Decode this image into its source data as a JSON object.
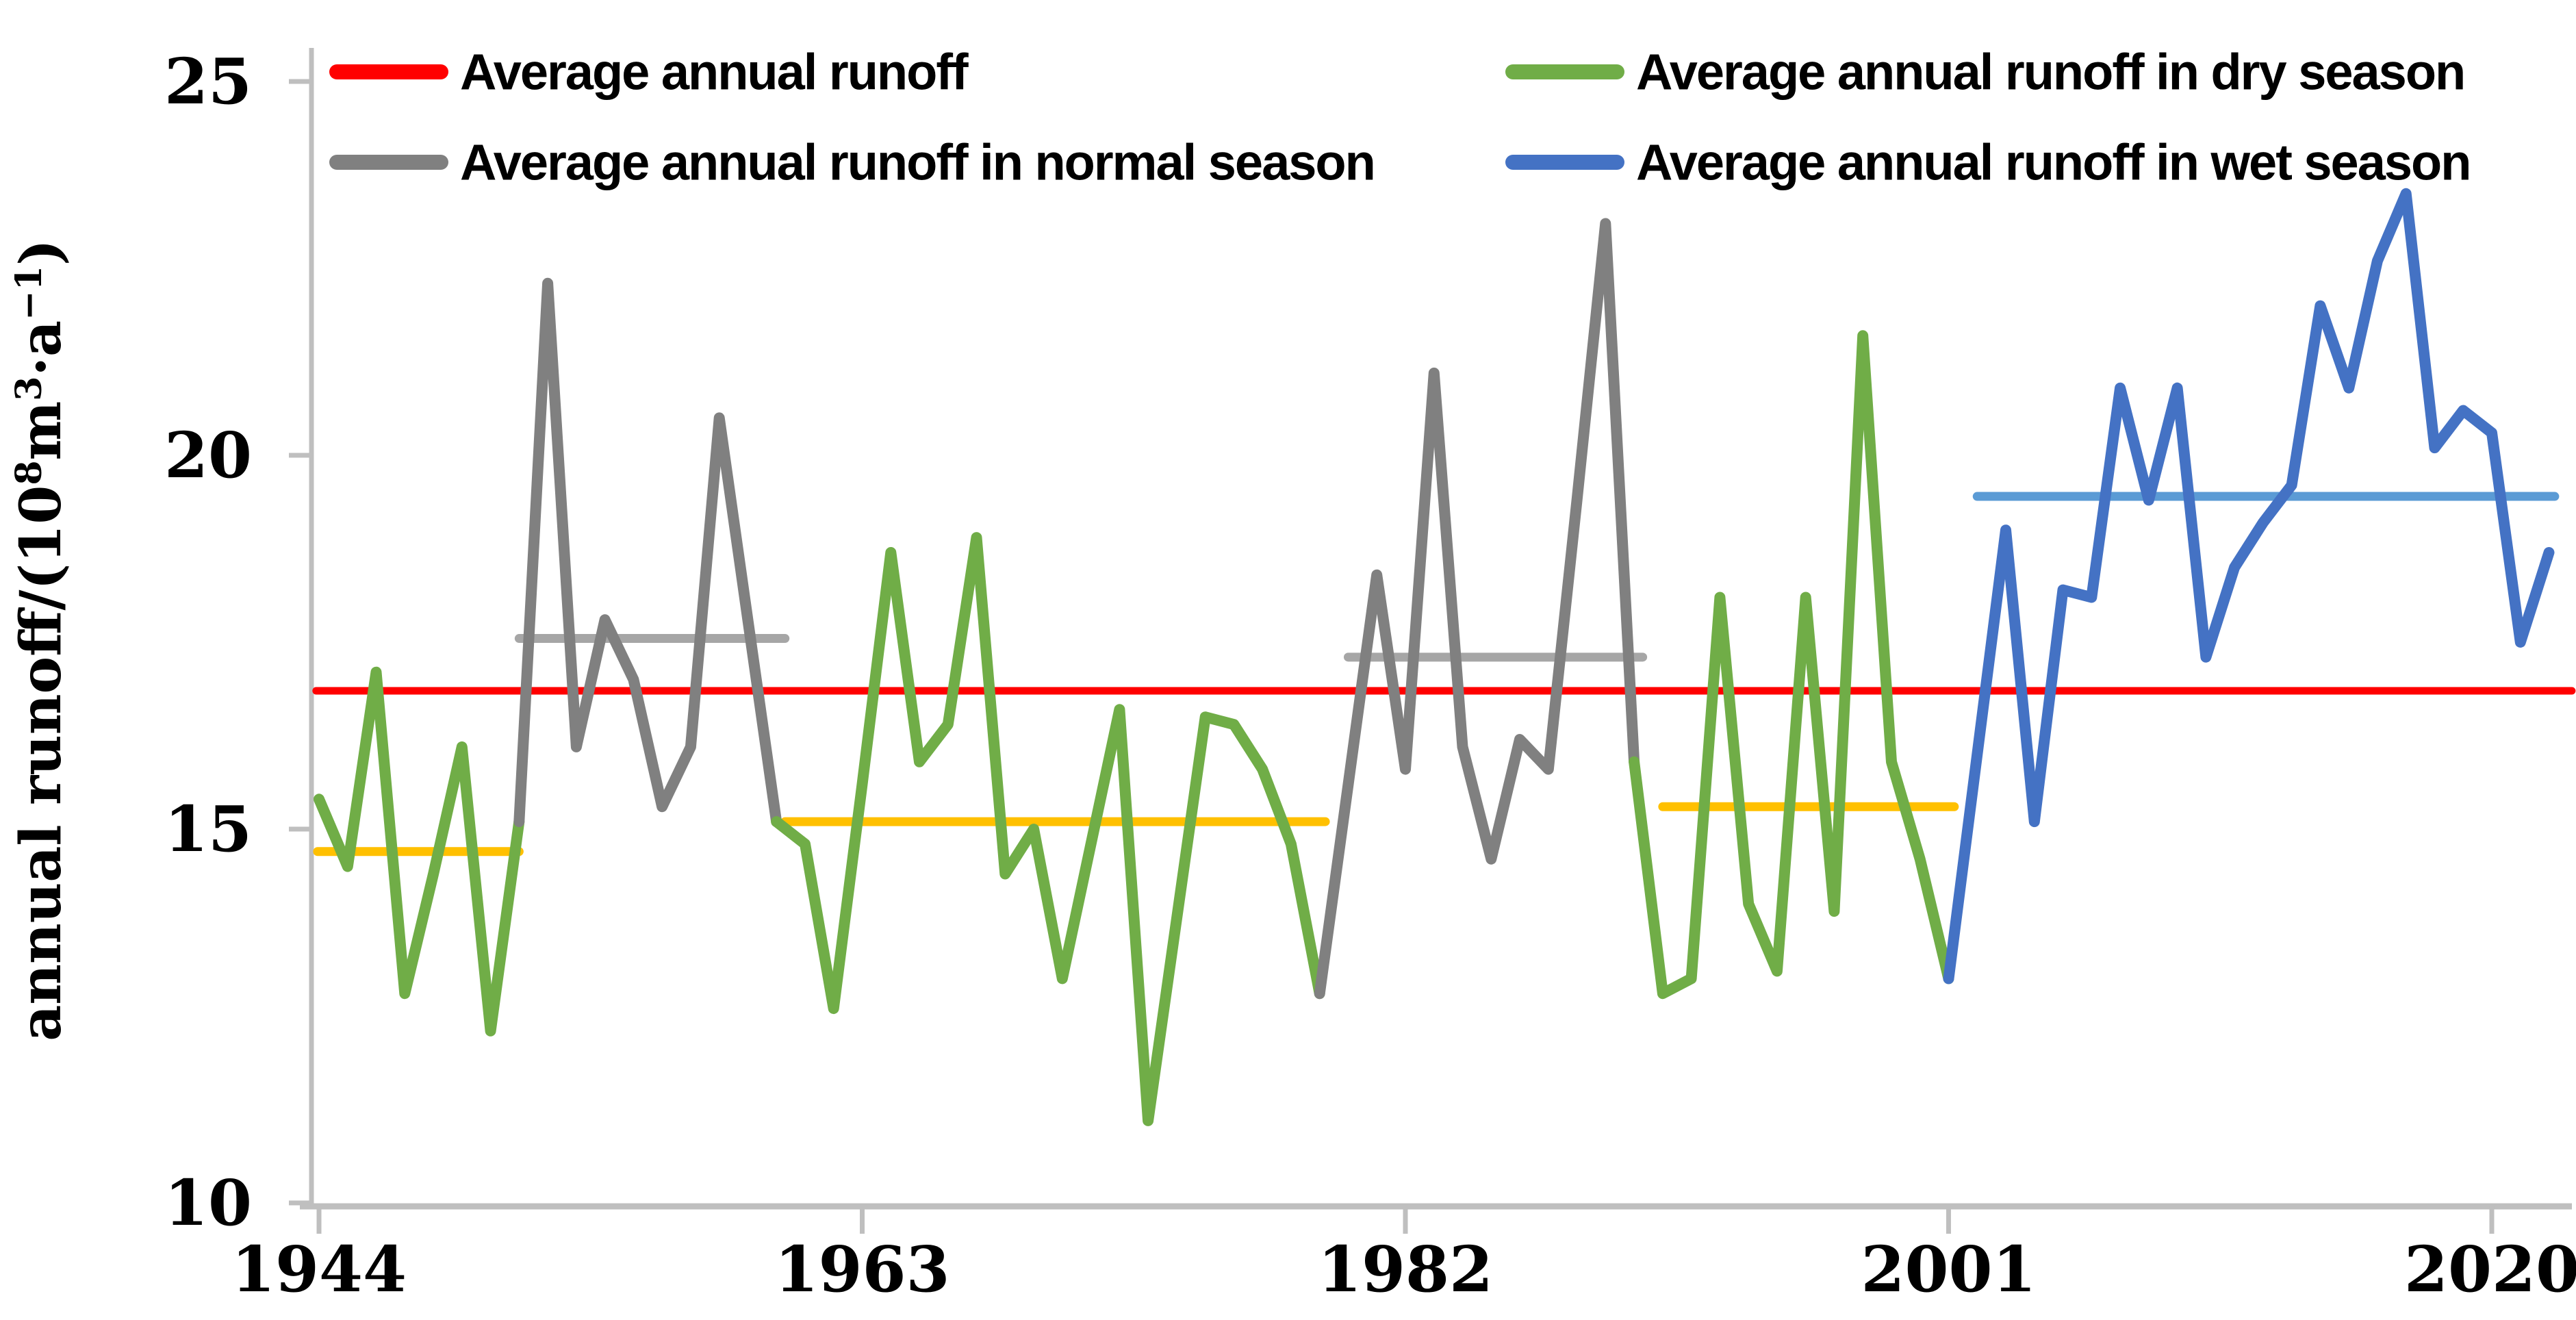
{
  "page": {
    "background": "#FFFFFF"
  },
  "chart_data": {
    "type": "line",
    "title": "",
    "xlabel": "",
    "ylabel": "annual runoff/(10^8 m^3 · a^-1)",
    "ylabel_parts": [
      {
        "t": "annual runoff/(10"
      },
      {
        "t": "8",
        "sup": true
      },
      {
        "t": "m"
      },
      {
        "t": "3",
        "sup": true
      },
      {
        "t": "·a"
      },
      {
        "t": "−1",
        "sup": true
      },
      {
        "t": ")"
      }
    ],
    "grid": "off",
    "legend_position": "top-two-columns",
    "legend": [
      {
        "label": "Average annual runoff",
        "color": "#FF0000",
        "series": "overall_average"
      },
      {
        "label": "Average annual runoff in normal season",
        "color": "#808080",
        "series": "normal"
      },
      {
        "label": "Average annual runoff in dry season",
        "color": "#70AD47",
        "series": "dry"
      },
      {
        "label": "Average annual runoff in wet season",
        "color": "#4472C4",
        "series": "wet"
      }
    ],
    "x_tick_labels": [
      "1944",
      "1963",
      "1982",
      "2001",
      "2020"
    ],
    "x_tick_years": [
      1944,
      1963,
      1982,
      2001,
      2020
    ],
    "y_tick_labels": [
      "10",
      "15",
      "20",
      "25"
    ],
    "y_ticks": [
      10,
      15,
      20,
      25
    ],
    "ylim": [
      10,
      25
    ],
    "xlim": [
      1944,
      2022
    ],
    "years": [
      1944,
      1945,
      1946,
      1947,
      1948,
      1949,
      1950,
      1951,
      1952,
      1953,
      1954,
      1955,
      1956,
      1957,
      1958,
      1959,
      1960,
      1961,
      1962,
      1963,
      1964,
      1965,
      1966,
      1967,
      1968,
      1969,
      1970,
      1971,
      1972,
      1973,
      1974,
      1975,
      1976,
      1977,
      1978,
      1979,
      1980,
      1981,
      1982,
      1983,
      1984,
      1985,
      1986,
      1987,
      1988,
      1989,
      1990,
      1991,
      1992,
      1993,
      1994,
      1995,
      1996,
      1997,
      1998,
      1999,
      2000,
      2001,
      2002,
      2003,
      2004,
      2005,
      2006,
      2007,
      2008,
      2009,
      2010,
      2011,
      2012,
      2013,
      2014,
      2015,
      2016,
      2017,
      2018,
      2019,
      2020,
      2021,
      2022
    ],
    "annual_runoff": [
      15.4,
      14.5,
      17.1,
      12.8,
      14.4,
      16.1,
      12.3,
      15.1,
      22.3,
      16.1,
      17.8,
      17.0,
      15.3,
      16.1,
      20.5,
      17.8,
      15.1,
      14.8,
      12.6,
      15.6,
      18.7,
      15.9,
      16.4,
      18.9,
      14.4,
      15.0,
      13.0,
      14.8,
      16.6,
      11.1,
      13.8,
      16.5,
      16.4,
      15.8,
      14.8,
      12.8,
      15.6,
      18.4,
      15.8,
      21.1,
      16.1,
      14.6,
      16.2,
      15.8,
      19.4,
      23.1,
      15.9,
      12.8,
      13.0,
      18.1,
      14.0,
      13.1,
      18.1,
      13.9,
      21.6,
      15.9,
      14.6,
      13.0,
      16.0,
      19.0,
      15.1,
      18.2,
      18.1,
      20.9,
      19.4,
      20.9,
      17.3,
      18.5,
      19.1,
      19.6,
      22.0,
      20.9,
      22.6,
      23.5,
      20.1,
      20.6,
      20.3,
      17.5,
      18.7
    ],
    "season_segments": [
      {
        "season": "dry",
        "start_year": 1944,
        "end_year": 1951,
        "color": "#70AD47"
      },
      {
        "season": "normal",
        "start_year": 1951,
        "end_year": 1960,
        "color": "#808080"
      },
      {
        "season": "dry",
        "start_year": 1960,
        "end_year": 1979,
        "color": "#70AD47"
      },
      {
        "season": "normal",
        "start_year": 1979,
        "end_year": 1990,
        "color": "#808080"
      },
      {
        "season": "dry",
        "start_year": 1990,
        "end_year": 2001,
        "color": "#70AD47"
      },
      {
        "season": "wet",
        "start_year": 2001,
        "end_year": 2022,
        "color": "#4472C4"
      }
    ],
    "overall_average": {
      "value": 16.85,
      "start_year": 1943.9,
      "end_year": 2022.8,
      "color": "#FF0000"
    },
    "period_averages": [
      {
        "season": "dry",
        "value": 14.7,
        "start_year": 1943.95,
        "end_year": 1951,
        "color": "#FFC000"
      },
      {
        "season": "normal",
        "value": 17.55,
        "start_year": 1951,
        "end_year": 1960.3,
        "color": "#A6A6A6"
      },
      {
        "season": "dry",
        "value": 15.1,
        "start_year": 1960.3,
        "end_year": 1979.2,
        "color": "#FFC000"
      },
      {
        "season": "normal",
        "value": 17.3,
        "start_year": 1980,
        "end_year": 1990.3,
        "color": "#A6A6A6"
      },
      {
        "season": "dry",
        "value": 15.3,
        "start_year": 1991,
        "end_year": 2001.2,
        "color": "#FFC000"
      },
      {
        "season": "wet",
        "value": 19.45,
        "start_year": 2002,
        "end_year": 2022.2,
        "color": "#5B9BD5"
      }
    ],
    "axis_color": "#BFBFBF"
  }
}
